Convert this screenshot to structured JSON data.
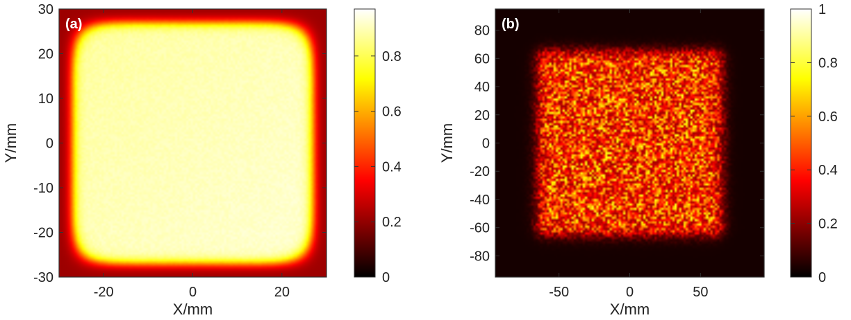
{
  "chart_data": [
    {
      "type": "heatmap",
      "panel_label": "(a)",
      "xlabel": "X/mm",
      "ylabel": "Y/mm",
      "xlim": [
        -30,
        30
      ],
      "ylim": [
        -30,
        30
      ],
      "x_ticks": [
        -20,
        0,
        20
      ],
      "y_ticks": [
        -30,
        -20,
        -10,
        0,
        10,
        20,
        30
      ],
      "colorbar": {
        "range": [
          0,
          0.97
        ],
        "ticks": [
          0,
          0.2,
          0.4,
          0.6,
          0.8
        ],
        "tick_labels": [
          "0",
          "0.2",
          "0.4",
          "0.6",
          "0.8"
        ]
      },
      "colormap": "hot",
      "pattern": "uniform",
      "shape": "rounded-square",
      "half_width": 27,
      "base_intensity": 0.93,
      "background": 0.22
    },
    {
      "type": "heatmap",
      "panel_label": "(b)",
      "xlabel": "X/mm",
      "ylabel": "Y/mm",
      "xlim": [
        -95,
        95
      ],
      "ylim": [
        -95,
        95
      ],
      "x_ticks": [
        -50,
        0,
        50
      ],
      "y_ticks": [
        -80,
        -60,
        -40,
        -20,
        0,
        20,
        40,
        60,
        80
      ],
      "colorbar": {
        "range": [
          0,
          1
        ],
        "ticks": [
          0,
          0.2,
          0.4,
          0.6,
          0.8,
          1
        ],
        "tick_labels": [
          "0",
          "0.2",
          "0.4",
          "0.6",
          "0.8",
          "1"
        ]
      },
      "colormap": "hot",
      "pattern": "speckle",
      "shape": "square",
      "half_width": 65,
      "base_intensity": 0.45,
      "background": 0.03
    }
  ]
}
